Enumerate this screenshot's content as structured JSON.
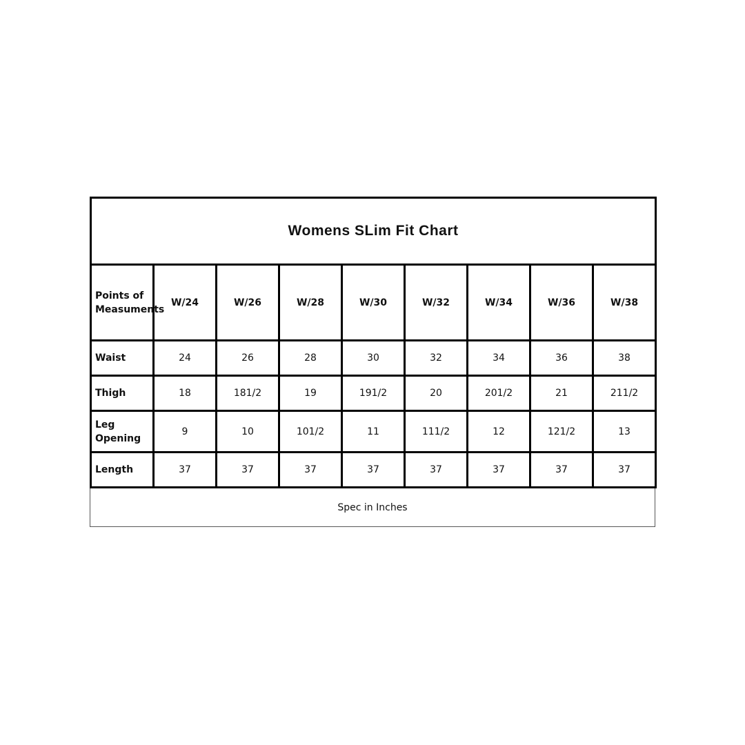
{
  "title": "Womens SLim Fit Chart",
  "header": {
    "label": "Points of Measuments",
    "sizes": [
      "W/24",
      "W/26",
      "W/28",
      "W/30",
      "W/32",
      "W/34",
      "W/36",
      "W/38"
    ]
  },
  "rows": [
    {
      "label": "Waist",
      "values": [
        "24",
        "26",
        "28",
        "30",
        "32",
        "34",
        "36",
        "38"
      ]
    },
    {
      "label": "Thigh",
      "values": [
        "18",
        "181/2",
        "19",
        "191/2",
        "20",
        "201/2",
        "21",
        "211/2"
      ]
    },
    {
      "label": "Leg Opening",
      "values": [
        "9",
        "10",
        "101/2",
        "11",
        "111/2",
        "12",
        "121/2",
        "13"
      ]
    },
    {
      "label": "Length",
      "values": [
        "37",
        "37",
        "37",
        "37",
        "37",
        "37",
        "37",
        "37"
      ]
    }
  ],
  "footer": "Spec in Inches"
}
